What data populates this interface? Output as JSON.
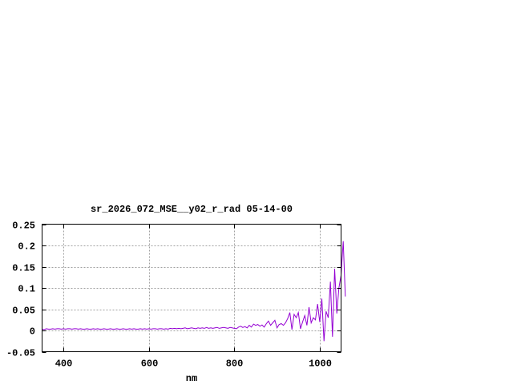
{
  "chart_data": {
    "type": "line",
    "title": "sr_2026_072_MSE__y02_r_rad 05-14-00",
    "xlabel": "nm",
    "ylabel": "",
    "xlim": [
      350,
      1050
    ],
    "ylim": [
      -0.05,
      0.25
    ],
    "xticks": [
      400,
      600,
      800,
      1000
    ],
    "xtick_labels": [
      "400",
      "600",
      "800",
      "1000"
    ],
    "yticks": [
      -0.05,
      0,
      0.05,
      0.1,
      0.15,
      0.2,
      0.25
    ],
    "ytick_labels": [
      "-0.05",
      "0",
      "0.05",
      "0.1",
      "0.15",
      "0.2",
      "0.25"
    ],
    "grid": true,
    "color": "#9400d3",
    "x_start": 350,
    "x_step": 5,
    "values": [
      0.003,
      0.002,
      0.004,
      0.003,
      0.003,
      0.004,
      0.003,
      0.004,
      0.004,
      0.003,
      0.004,
      0.003,
      0.004,
      0.004,
      0.003,
      0.004,
      0.004,
      0.003,
      0.004,
      0.003,
      0.003,
      0.004,
      0.003,
      0.003,
      0.004,
      0.003,
      0.004,
      0.003,
      0.003,
      0.004,
      0.003,
      0.003,
      0.004,
      0.003,
      0.003,
      0.004,
      0.003,
      0.003,
      0.004,
      0.003,
      0.003,
      0.004,
      0.003,
      0.004,
      0.003,
      0.003,
      0.004,
      0.003,
      0.004,
      0.003,
      0.004,
      0.003,
      0.004,
      0.004,
      0.003,
      0.004,
      0.004,
      0.003,
      0.004,
      0.003,
      0.005,
      0.004,
      0.005,
      0.004,
      0.005,
      0.004,
      0.005,
      0.006,
      0.004,
      0.005,
      0.006,
      0.005,
      0.004,
      0.006,
      0.005,
      0.006,
      0.005,
      0.007,
      0.005,
      0.006,
      0.005,
      0.006,
      0.007,
      0.005,
      0.006,
      0.007,
      0.006,
      0.005,
      0.007,
      0.006,
      0.005,
      0.004,
      0.008,
      0.01,
      0.007,
      0.009,
      0.006,
      0.012,
      0.008,
      0.015,
      0.012,
      0.014,
      0.01,
      0.013,
      0.008,
      0.016,
      0.022,
      0.012,
      0.018,
      0.024,
      0.006,
      0.014,
      0.016,
      0.012,
      0.018,
      0.028,
      0.042,
      0.002,
      0.038,
      0.03,
      0.042,
      0.004,
      0.02,
      0.035,
      0.012,
      0.055,
      0.018,
      0.03,
      0.025,
      0.062,
      0.02,
      0.075,
      -0.025,
      0.045,
      0.03,
      0.115,
      -0.015,
      0.145,
      0.04,
      0.1,
      0.13,
      0.21,
      0.08
    ]
  }
}
